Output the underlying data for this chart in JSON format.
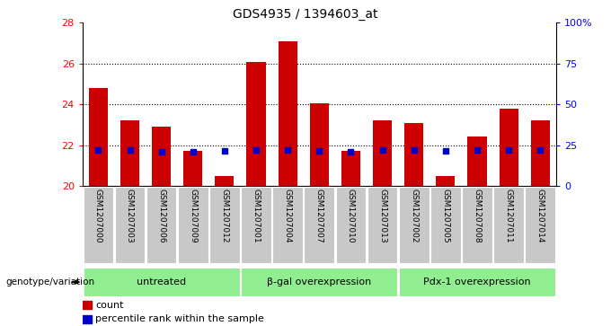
{
  "title": "GDS4935 / 1394603_at",
  "samples": [
    "GSM1207000",
    "GSM1207003",
    "GSM1207006",
    "GSM1207009",
    "GSM1207012",
    "GSM1207001",
    "GSM1207004",
    "GSM1207007",
    "GSM1207010",
    "GSM1207013",
    "GSM1207002",
    "GSM1207005",
    "GSM1207008",
    "GSM1207011",
    "GSM1207014"
  ],
  "counts": [
    24.8,
    23.2,
    22.9,
    21.7,
    20.5,
    26.1,
    27.1,
    24.05,
    21.7,
    23.2,
    23.1,
    20.5,
    22.4,
    23.8,
    23.2
  ],
  "percentile_pct": [
    22,
    22,
    21,
    21,
    21.5,
    22,
    22,
    21.5,
    21,
    22,
    21.8,
    21.5,
    22,
    21.8,
    21.8
  ],
  "bar_color": "#cc0000",
  "dot_color": "#0000cc",
  "ylim_left": [
    20,
    28
  ],
  "ylim_right": [
    0,
    100
  ],
  "yticks_left": [
    20,
    22,
    24,
    26,
    28
  ],
  "yticks_right": [
    0,
    25,
    50,
    75,
    100
  ],
  "ytick_labels_right": [
    "0",
    "25",
    "50",
    "75",
    "100%"
  ],
  "groups": [
    {
      "label": "untreated",
      "start": 0,
      "end": 4
    },
    {
      "label": "β-gal overexpression",
      "start": 5,
      "end": 9
    },
    {
      "label": "Pdx-1 overexpression",
      "start": 10,
      "end": 14
    }
  ],
  "group_color": "#90ee90",
  "bar_width": 0.6,
  "grid_color": "black",
  "legend_items": [
    "count",
    "percentile rank within the sample"
  ],
  "legend_colors": [
    "#cc0000",
    "#0000cc"
  ],
  "genotype_label": "genotype/variation",
  "background_color": "#ffffff",
  "tick_area_color": "#c8c8c8"
}
